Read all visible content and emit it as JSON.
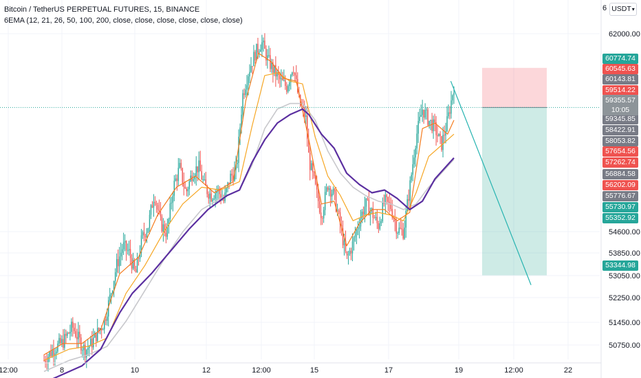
{
  "legend": {
    "symbol": "Bitcoin / TetherUS PERPETUAL FUTURES, 15, BINANCE",
    "indicator": "6EMA (12, 21, 26, 50, 100, 200, close, close, close, close, close, close)"
  },
  "currency_button": {
    "label": "USDT",
    "top_partial": "6"
  },
  "current_price": {
    "value": "59355.57",
    "countdown": "10:05"
  },
  "price_tags": [
    {
      "value": "60774.74",
      "color": "#26a69a"
    },
    {
      "value": "60545.63",
      "color": "#ef5350"
    },
    {
      "value": "60143.81",
      "color": "#787b86"
    },
    {
      "value": "59514.22",
      "color": "#ef5350"
    },
    {
      "value": "59345.85",
      "color": "#787b86"
    },
    {
      "value": "58422.91",
      "color": "#787b86"
    },
    {
      "value": "58053.82",
      "color": "#787b86"
    },
    {
      "value": "57654.56",
      "color": "#ef5350"
    },
    {
      "value": "57262.74",
      "color": "#ef5350"
    },
    {
      "value": "56884.58",
      "color": "#787b86"
    },
    {
      "value": "56202.09",
      "color": "#ef5350"
    },
    {
      "value": "55776.67",
      "color": "#787b86"
    },
    {
      "value": "55730.97",
      "color": "#26a69a"
    },
    {
      "value": "55352.92",
      "color": "#26a69a"
    },
    {
      "value": "53344.98",
      "color": "#26a69a"
    }
  ],
  "chart_data": {
    "type": "candlestick",
    "x_axis": {
      "tick_labels": [
        "12:00",
        "8",
        "10",
        "12",
        "12:00",
        "15",
        "17",
        "19",
        "12:00",
        "22"
      ]
    },
    "y_axis": {
      "tick_labels": [
        "62000.00",
        "54600.00",
        "53850.00",
        "53050.00",
        "52250.00",
        "51450.00",
        "50750.00"
      ],
      "range": [
        50100,
        62700
      ]
    },
    "price_path": [
      [
        0,
        50300
      ],
      [
        3,
        50700
      ],
      [
        6,
        50950
      ],
      [
        9,
        51500
      ],
      [
        11,
        51050
      ],
      [
        13,
        50650
      ],
      [
        15,
        50900
      ],
      [
        17,
        51300
      ],
      [
        19,
        51650
      ],
      [
        21,
        52600
      ],
      [
        23,
        53700
      ],
      [
        25,
        54400
      ],
      [
        27,
        54150
      ],
      [
        29,
        53350
      ],
      [
        31,
        54650
      ],
      [
        33,
        55100
      ],
      [
        35,
        56300
      ],
      [
        37,
        55200
      ],
      [
        39,
        54850
      ],
      [
        41,
        56500
      ],
      [
        43,
        57200
      ],
      [
        45,
        56300
      ],
      [
        47,
        57000
      ],
      [
        49,
        57250
      ],
      [
        51,
        56500
      ],
      [
        53,
        56200
      ],
      [
        55,
        56400
      ],
      [
        57,
        56000
      ],
      [
        59,
        56850
      ],
      [
        61,
        57100
      ],
      [
        63,
        59800
      ],
      [
        65,
        60700
      ],
      [
        67,
        61300
      ],
      [
        69,
        61700
      ],
      [
        71,
        61050
      ],
      [
        73,
        60650
      ],
      [
        75,
        60300
      ],
      [
        77,
        60100
      ],
      [
        79,
        60900
      ],
      [
        81,
        59500
      ],
      [
        83,
        59000
      ],
      [
        84,
        57500
      ],
      [
        86,
        56500
      ],
      [
        88,
        55500
      ],
      [
        90,
        56600
      ],
      [
        92,
        56200
      ],
      [
        94,
        55100
      ],
      [
        96,
        53900
      ],
      [
        98,
        54500
      ],
      [
        100,
        55300
      ],
      [
        102,
        55900
      ],
      [
        104,
        55600
      ],
      [
        106,
        55100
      ],
      [
        108,
        56000
      ],
      [
        110,
        55800
      ],
      [
        112,
        55000
      ],
      [
        114,
        54900
      ],
      [
        116,
        56500
      ],
      [
        118,
        58300
      ],
      [
        120,
        59300
      ],
      [
        122,
        58900
      ],
      [
        124,
        58600
      ],
      [
        126,
        58000
      ],
      [
        128,
        58900
      ],
      [
        129,
        59500
      ],
      [
        130,
        60145
      ]
    ],
    "ema_fast": [
      [
        0,
        50500
      ],
      [
        6,
        50900
      ],
      [
        12,
        50900
      ],
      [
        18,
        51400
      ],
      [
        24,
        53400
      ],
      [
        30,
        54000
      ],
      [
        36,
        55500
      ],
      [
        42,
        56500
      ],
      [
        48,
        56900
      ],
      [
        54,
        56300
      ],
      [
        60,
        56700
      ],
      [
        64,
        59600
      ],
      [
        68,
        61300
      ],
      [
        72,
        61000
      ],
      [
        76,
        60400
      ],
      [
        80,
        60300
      ],
      [
        84,
        58200
      ],
      [
        88,
        55900
      ],
      [
        92,
        56000
      ],
      [
        96,
        54400
      ],
      [
        100,
        55200
      ],
      [
        104,
        55700
      ],
      [
        108,
        55700
      ],
      [
        112,
        55300
      ],
      [
        116,
        55600
      ],
      [
        120,
        58600
      ],
      [
        124,
        58800
      ],
      [
        128,
        58400
      ],
      [
        130,
        58900
      ]
    ],
    "ema_mid": [
      [
        0,
        50300
      ],
      [
        8,
        50700
      ],
      [
        14,
        50800
      ],
      [
        20,
        51100
      ],
      [
        26,
        52700
      ],
      [
        32,
        53700
      ],
      [
        38,
        54900
      ],
      [
        44,
        55900
      ],
      [
        50,
        56500
      ],
      [
        56,
        56400
      ],
      [
        62,
        56700
      ],
      [
        66,
        58700
      ],
      [
        70,
        60500
      ],
      [
        74,
        60600
      ],
      [
        78,
        60300
      ],
      [
        82,
        60200
      ],
      [
        86,
        58300
      ],
      [
        90,
        56900
      ],
      [
        94,
        56200
      ],
      [
        98,
        55300
      ],
      [
        102,
        55500
      ],
      [
        106,
        55600
      ],
      [
        110,
        55500
      ],
      [
        114,
        55300
      ],
      [
        118,
        56300
      ],
      [
        122,
        57600
      ],
      [
        126,
        58000
      ],
      [
        130,
        58400
      ]
    ],
    "ema_slow_gray": [
      [
        0,
        49900
      ],
      [
        8,
        50300
      ],
      [
        14,
        50500
      ],
      [
        20,
        50800
      ],
      [
        26,
        51700
      ],
      [
        32,
        52800
      ],
      [
        38,
        53900
      ],
      [
        44,
        54900
      ],
      [
        50,
        55700
      ],
      [
        56,
        56100
      ],
      [
        62,
        56400
      ],
      [
        66,
        57300
      ],
      [
        70,
        58600
      ],
      [
        74,
        59300
      ],
      [
        78,
        59500
      ],
      [
        82,
        59500
      ],
      [
        86,
        58900
      ],
      [
        90,
        57800
      ],
      [
        94,
        57000
      ],
      [
        98,
        56500
      ],
      [
        102,
        56200
      ],
      [
        106,
        56000
      ],
      [
        110,
        55900
      ],
      [
        114,
        55700
      ],
      [
        118,
        55900
      ],
      [
        122,
        56500
      ],
      [
        126,
        57000
      ],
      [
        130,
        57500
      ]
    ],
    "ema_200_purple": [
      [
        0,
        49500
      ],
      [
        6,
        49800
      ],
      [
        12,
        50100
      ],
      [
        18,
        50700
      ],
      [
        24,
        52000
      ],
      [
        28,
        52700
      ],
      [
        34,
        53400
      ],
      [
        40,
        54200
      ],
      [
        46,
        55000
      ],
      [
        52,
        55700
      ],
      [
        58,
        56200
      ],
      [
        62,
        56400
      ],
      [
        66,
        57400
      ],
      [
        70,
        58200
      ],
      [
        74,
        58800
      ],
      [
        78,
        59100
      ],
      [
        82,
        59300
      ],
      [
        84,
        59100
      ],
      [
        88,
        58400
      ],
      [
        92,
        57900
      ],
      [
        96,
        57000
      ],
      [
        100,
        56600
      ],
      [
        104,
        56300
      ],
      [
        108,
        56400
      ],
      [
        112,
        56100
      ],
      [
        116,
        55700
      ],
      [
        120,
        56000
      ],
      [
        124,
        56800
      ],
      [
        128,
        57300
      ],
      [
        130,
        57550
      ]
    ],
    "position": {
      "entry": 59355.57,
      "stop": 60774.74,
      "target": 53344.98,
      "projection": [
        [
          129,
          60300
        ],
        [
          137,
          53000
        ]
      ]
    }
  }
}
